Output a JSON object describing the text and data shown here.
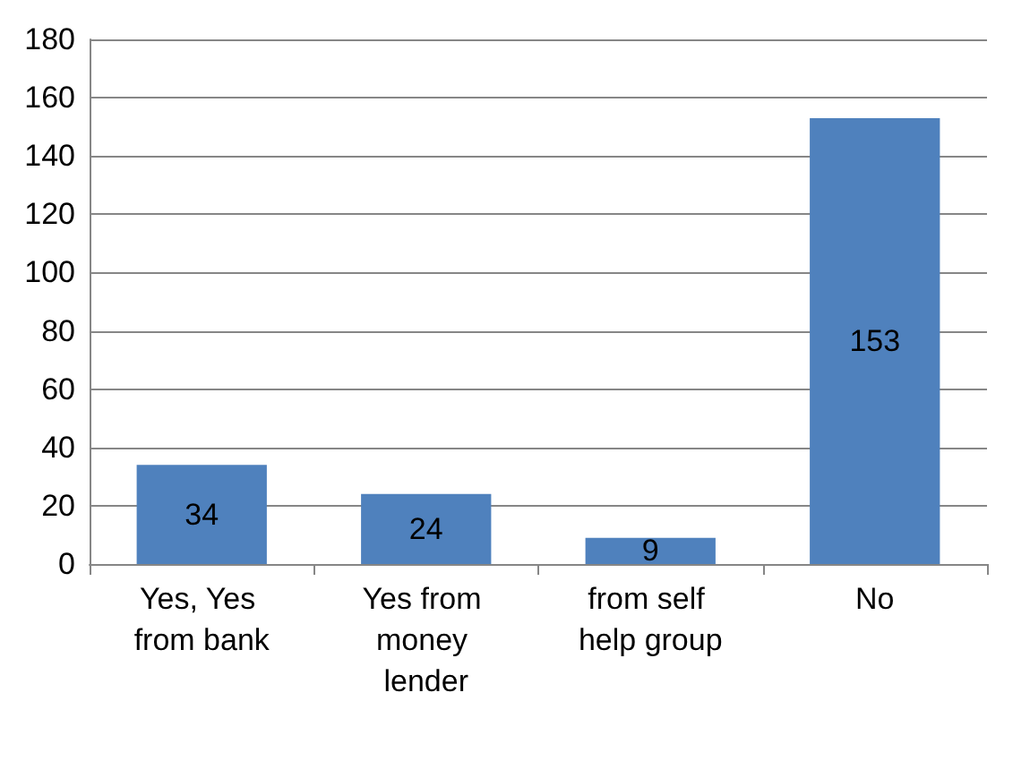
{
  "chart_data": {
    "type": "bar",
    "categories": [
      "Yes, Yes from bank",
      "Yes from money lender",
      "from self help group",
      "No"
    ],
    "values": [
      34,
      24,
      9,
      153
    ],
    "color": "#4f81bd",
    "ylim": [
      0,
      180
    ],
    "yticks": [
      0,
      20,
      40,
      60,
      80,
      100,
      120,
      140,
      160,
      180
    ],
    "grid": "y",
    "data_labels": true
  }
}
